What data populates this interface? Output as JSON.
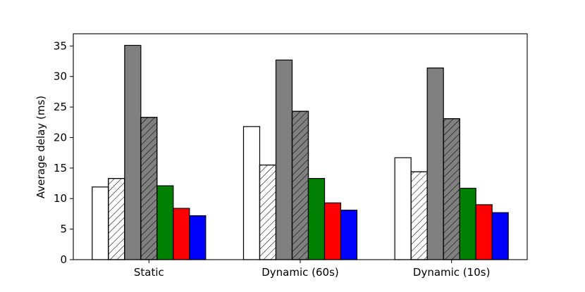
{
  "chart_data": {
    "type": "bar",
    "title": "",
    "xlabel": "",
    "ylabel": "Average delay (ms)",
    "categories": [
      "Static",
      "Dynamic (60s)",
      "Dynamic (10s)"
    ],
    "ylim": [
      0,
      37
    ],
    "yticks": [
      0,
      5,
      10,
      15,
      20,
      25,
      30,
      35
    ],
    "grid": false,
    "legend": "none",
    "series": [
      {
        "values": [
          11.9,
          21.8,
          16.7
        ],
        "color": "#ffffff",
        "hatch": false
      },
      {
        "values": [
          13.3,
          15.5,
          14.4
        ],
        "color": "#ffffff",
        "hatch": true
      },
      {
        "values": [
          35.1,
          32.7,
          31.4
        ],
        "color": "#808080",
        "hatch": false
      },
      {
        "values": [
          23.3,
          24.3,
          23.1
        ],
        "color": "#808080",
        "hatch": true
      },
      {
        "values": [
          12.1,
          13.3,
          11.7
        ],
        "color": "#008000",
        "hatch": false
      },
      {
        "values": [
          8.4,
          9.3,
          9.0
        ],
        "color": "#ff0000",
        "hatch": false
      },
      {
        "values": [
          7.2,
          8.1,
          7.7
        ],
        "color": "#0000ff",
        "hatch": false
      }
    ]
  }
}
